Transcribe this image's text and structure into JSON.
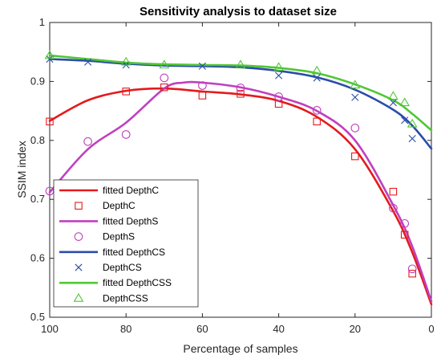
{
  "chart_data": {
    "type": "line",
    "title": "Sensitivity analysis to dataset size",
    "xlabel": "Percentage of samples",
    "ylabel": "SSIM index",
    "xlim": [
      100,
      0
    ],
    "ylim": [
      0.5,
      1
    ],
    "x_reversed": true,
    "xticks": [
      100,
      80,
      60,
      40,
      20,
      0
    ],
    "yticks": [
      0.5,
      0.6,
      0.7,
      0.8,
      0.9,
      1
    ],
    "ytick_labels": [
      "0.5",
      "0.6",
      "0.7",
      "0.8",
      "0.9",
      "1"
    ],
    "grid": false,
    "legend_position": "bottom-left",
    "series": [
      {
        "name": "DepthC",
        "fit_name": "fitted DepthC",
        "color": "#e41a1c",
        "marker": "square",
        "x": [
          100,
          80,
          70,
          60,
          50,
          40,
          30,
          20,
          10,
          7,
          5
        ],
        "y": [
          0.832,
          0.883,
          0.89,
          0.876,
          0.879,
          0.862,
          0.832,
          0.773,
          0.713,
          0.64,
          0.574
        ],
        "fit_x": [
          100,
          90,
          80,
          70,
          60,
          50,
          40,
          30,
          20,
          10,
          5,
          0
        ],
        "fit_y": [
          0.833,
          0.868,
          0.884,
          0.888,
          0.883,
          0.878,
          0.867,
          0.84,
          0.785,
          0.68,
          0.61,
          0.522
        ]
      },
      {
        "name": "DepthS",
        "fit_name": "fitted DepthS",
        "color": "#bf40bf",
        "marker": "circle",
        "x": [
          100,
          90,
          80,
          70,
          60,
          50,
          40,
          30,
          20,
          10,
          7,
          5
        ],
        "y": [
          0.714,
          0.798,
          0.81,
          0.906,
          0.893,
          0.889,
          0.874,
          0.851,
          0.821,
          0.685,
          0.659,
          0.582
        ],
        "fit_x": [
          100,
          90,
          80,
          70,
          65,
          60,
          50,
          40,
          30,
          20,
          10,
          5,
          0
        ],
        "fit_y": [
          0.712,
          0.785,
          0.83,
          0.888,
          0.898,
          0.898,
          0.89,
          0.874,
          0.85,
          0.8,
          0.69,
          0.62,
          0.527
        ]
      },
      {
        "name": "DepthCS",
        "fit_name": "fitted DepthCS",
        "color": "#2b4da8",
        "marker": "x",
        "x": [
          100,
          90,
          80,
          60,
          40,
          30,
          20,
          10,
          7,
          5
        ],
        "y": [
          0.938,
          0.933,
          0.928,
          0.926,
          0.91,
          0.906,
          0.873,
          0.864,
          0.834,
          0.803
        ],
        "fit_x": [
          100,
          90,
          80,
          70,
          60,
          50,
          40,
          30,
          20,
          10,
          5,
          0
        ],
        "fit_y": [
          0.938,
          0.935,
          0.93,
          0.927,
          0.926,
          0.924,
          0.918,
          0.907,
          0.886,
          0.852,
          0.825,
          0.786
        ]
      },
      {
        "name": "DepthCSS",
        "fit_name": "fitted DepthCSS",
        "color": "#4fc734",
        "marker": "triangle",
        "x": [
          100,
          80,
          70,
          50,
          40,
          30,
          20,
          10,
          7,
          5
        ],
        "y": [
          0.944,
          0.933,
          0.928,
          0.928,
          0.924,
          0.918,
          0.894,
          0.875,
          0.864,
          0.828
        ],
        "fit_x": [
          100,
          90,
          80,
          70,
          60,
          50,
          40,
          30,
          20,
          10,
          5,
          0
        ],
        "fit_y": [
          0.944,
          0.938,
          0.932,
          0.929,
          0.928,
          0.927,
          0.923,
          0.914,
          0.895,
          0.868,
          0.845,
          0.817
        ]
      }
    ]
  }
}
